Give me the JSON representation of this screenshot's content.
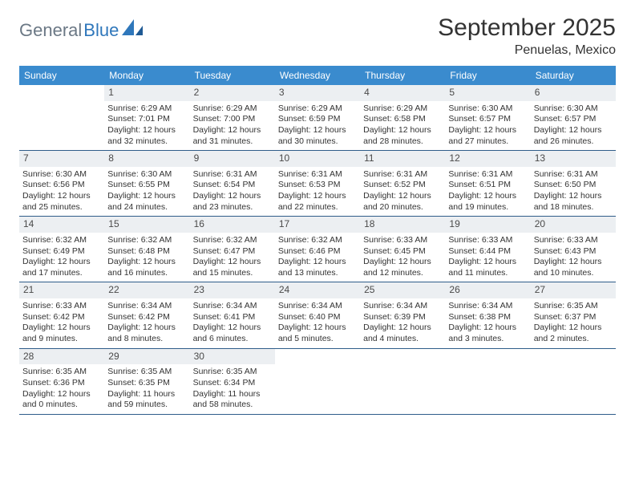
{
  "logo": {
    "part1": "General",
    "part2": "Blue"
  },
  "title": "September 2025",
  "location": "Penuelas, Mexico",
  "colors": {
    "header_bg": "#3a8bce",
    "header_text": "#ffffff",
    "daynum_bg": "#eceff2",
    "border": "#2f5d8a",
    "logo_gray": "#6b7885",
    "logo_blue": "#2f77bb",
    "text": "#333333"
  },
  "dow": [
    "Sunday",
    "Monday",
    "Tuesday",
    "Wednesday",
    "Thursday",
    "Friday",
    "Saturday"
  ],
  "weeks": [
    [
      {
        "n": "",
        "sr": "",
        "ss": "",
        "d1": "",
        "d2": ""
      },
      {
        "n": "1",
        "sr": "Sunrise: 6:29 AM",
        "ss": "Sunset: 7:01 PM",
        "d1": "Daylight: 12 hours",
        "d2": "and 32 minutes."
      },
      {
        "n": "2",
        "sr": "Sunrise: 6:29 AM",
        "ss": "Sunset: 7:00 PM",
        "d1": "Daylight: 12 hours",
        "d2": "and 31 minutes."
      },
      {
        "n": "3",
        "sr": "Sunrise: 6:29 AM",
        "ss": "Sunset: 6:59 PM",
        "d1": "Daylight: 12 hours",
        "d2": "and 30 minutes."
      },
      {
        "n": "4",
        "sr": "Sunrise: 6:29 AM",
        "ss": "Sunset: 6:58 PM",
        "d1": "Daylight: 12 hours",
        "d2": "and 28 minutes."
      },
      {
        "n": "5",
        "sr": "Sunrise: 6:30 AM",
        "ss": "Sunset: 6:57 PM",
        "d1": "Daylight: 12 hours",
        "d2": "and 27 minutes."
      },
      {
        "n": "6",
        "sr": "Sunrise: 6:30 AM",
        "ss": "Sunset: 6:57 PM",
        "d1": "Daylight: 12 hours",
        "d2": "and 26 minutes."
      }
    ],
    [
      {
        "n": "7",
        "sr": "Sunrise: 6:30 AM",
        "ss": "Sunset: 6:56 PM",
        "d1": "Daylight: 12 hours",
        "d2": "and 25 minutes."
      },
      {
        "n": "8",
        "sr": "Sunrise: 6:30 AM",
        "ss": "Sunset: 6:55 PM",
        "d1": "Daylight: 12 hours",
        "d2": "and 24 minutes."
      },
      {
        "n": "9",
        "sr": "Sunrise: 6:31 AM",
        "ss": "Sunset: 6:54 PM",
        "d1": "Daylight: 12 hours",
        "d2": "and 23 minutes."
      },
      {
        "n": "10",
        "sr": "Sunrise: 6:31 AM",
        "ss": "Sunset: 6:53 PM",
        "d1": "Daylight: 12 hours",
        "d2": "and 22 minutes."
      },
      {
        "n": "11",
        "sr": "Sunrise: 6:31 AM",
        "ss": "Sunset: 6:52 PM",
        "d1": "Daylight: 12 hours",
        "d2": "and 20 minutes."
      },
      {
        "n": "12",
        "sr": "Sunrise: 6:31 AM",
        "ss": "Sunset: 6:51 PM",
        "d1": "Daylight: 12 hours",
        "d2": "and 19 minutes."
      },
      {
        "n": "13",
        "sr": "Sunrise: 6:31 AM",
        "ss": "Sunset: 6:50 PM",
        "d1": "Daylight: 12 hours",
        "d2": "and 18 minutes."
      }
    ],
    [
      {
        "n": "14",
        "sr": "Sunrise: 6:32 AM",
        "ss": "Sunset: 6:49 PM",
        "d1": "Daylight: 12 hours",
        "d2": "and 17 minutes."
      },
      {
        "n": "15",
        "sr": "Sunrise: 6:32 AM",
        "ss": "Sunset: 6:48 PM",
        "d1": "Daylight: 12 hours",
        "d2": "and 16 minutes."
      },
      {
        "n": "16",
        "sr": "Sunrise: 6:32 AM",
        "ss": "Sunset: 6:47 PM",
        "d1": "Daylight: 12 hours",
        "d2": "and 15 minutes."
      },
      {
        "n": "17",
        "sr": "Sunrise: 6:32 AM",
        "ss": "Sunset: 6:46 PM",
        "d1": "Daylight: 12 hours",
        "d2": "and 13 minutes."
      },
      {
        "n": "18",
        "sr": "Sunrise: 6:33 AM",
        "ss": "Sunset: 6:45 PM",
        "d1": "Daylight: 12 hours",
        "d2": "and 12 minutes."
      },
      {
        "n": "19",
        "sr": "Sunrise: 6:33 AM",
        "ss": "Sunset: 6:44 PM",
        "d1": "Daylight: 12 hours",
        "d2": "and 11 minutes."
      },
      {
        "n": "20",
        "sr": "Sunrise: 6:33 AM",
        "ss": "Sunset: 6:43 PM",
        "d1": "Daylight: 12 hours",
        "d2": "and 10 minutes."
      }
    ],
    [
      {
        "n": "21",
        "sr": "Sunrise: 6:33 AM",
        "ss": "Sunset: 6:42 PM",
        "d1": "Daylight: 12 hours",
        "d2": "and 9 minutes."
      },
      {
        "n": "22",
        "sr": "Sunrise: 6:34 AM",
        "ss": "Sunset: 6:42 PM",
        "d1": "Daylight: 12 hours",
        "d2": "and 8 minutes."
      },
      {
        "n": "23",
        "sr": "Sunrise: 6:34 AM",
        "ss": "Sunset: 6:41 PM",
        "d1": "Daylight: 12 hours",
        "d2": "and 6 minutes."
      },
      {
        "n": "24",
        "sr": "Sunrise: 6:34 AM",
        "ss": "Sunset: 6:40 PM",
        "d1": "Daylight: 12 hours",
        "d2": "and 5 minutes."
      },
      {
        "n": "25",
        "sr": "Sunrise: 6:34 AM",
        "ss": "Sunset: 6:39 PM",
        "d1": "Daylight: 12 hours",
        "d2": "and 4 minutes."
      },
      {
        "n": "26",
        "sr": "Sunrise: 6:34 AM",
        "ss": "Sunset: 6:38 PM",
        "d1": "Daylight: 12 hours",
        "d2": "and 3 minutes."
      },
      {
        "n": "27",
        "sr": "Sunrise: 6:35 AM",
        "ss": "Sunset: 6:37 PM",
        "d1": "Daylight: 12 hours",
        "d2": "and 2 minutes."
      }
    ],
    [
      {
        "n": "28",
        "sr": "Sunrise: 6:35 AM",
        "ss": "Sunset: 6:36 PM",
        "d1": "Daylight: 12 hours",
        "d2": "and 0 minutes."
      },
      {
        "n": "29",
        "sr": "Sunrise: 6:35 AM",
        "ss": "Sunset: 6:35 PM",
        "d1": "Daylight: 11 hours",
        "d2": "and 59 minutes."
      },
      {
        "n": "30",
        "sr": "Sunrise: 6:35 AM",
        "ss": "Sunset: 6:34 PM",
        "d1": "Daylight: 11 hours",
        "d2": "and 58 minutes."
      },
      {
        "n": "",
        "sr": "",
        "ss": "",
        "d1": "",
        "d2": ""
      },
      {
        "n": "",
        "sr": "",
        "ss": "",
        "d1": "",
        "d2": ""
      },
      {
        "n": "",
        "sr": "",
        "ss": "",
        "d1": "",
        "d2": ""
      },
      {
        "n": "",
        "sr": "",
        "ss": "",
        "d1": "",
        "d2": ""
      }
    ]
  ]
}
